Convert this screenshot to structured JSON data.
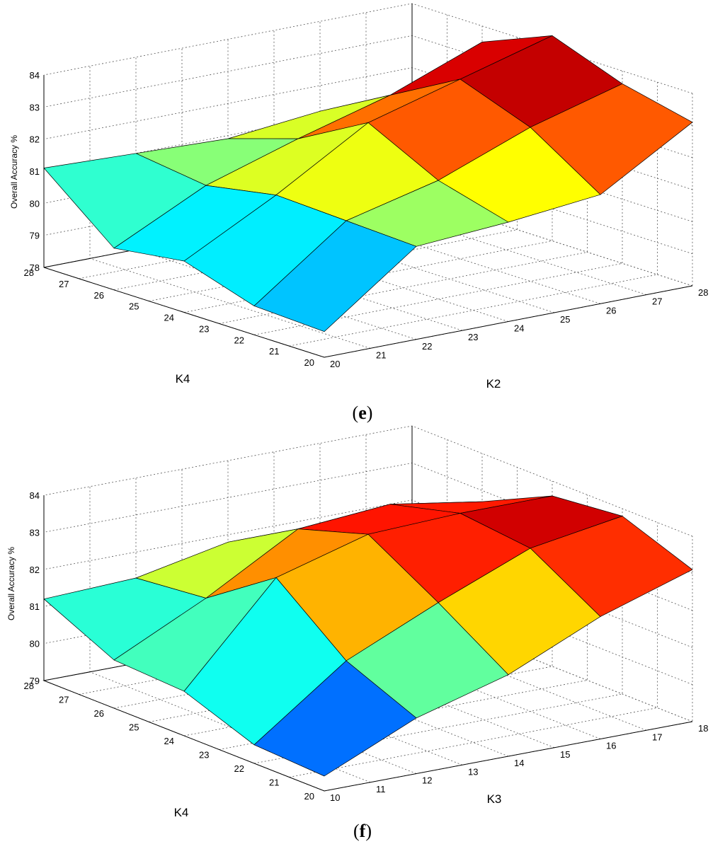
{
  "chart_data": [
    {
      "type": "surface",
      "caption": "(e)",
      "zlabel": "Overall Accuracy %",
      "xlabel": "K4",
      "ylabel": "K2",
      "x_ticks": [
        "20",
        "21",
        "22",
        "23",
        "24",
        "25",
        "26",
        "27",
        "28"
      ],
      "y_ticks": [
        "20",
        "21",
        "22",
        "23",
        "24",
        "25",
        "26",
        "27",
        "28"
      ],
      "z_ticks": [
        "78",
        "79",
        "80",
        "81",
        "82",
        "83",
        "84"
      ],
      "xlim": [
        20,
        28
      ],
      "ylim": [
        20,
        28
      ],
      "zlim": [
        78,
        84
      ],
      "grid": true,
      "colormap": "jet",
      "x": [
        20,
        22,
        24,
        26,
        28
      ],
      "y": [
        20,
        22,
        24,
        26,
        28
      ],
      "z": [
        [
          78.8,
          80.9,
          81.1,
          81.4,
          83.1
        ],
        [
          78.9,
          81.0,
          81.7,
          82.8,
          83.6
        ],
        [
          79.6,
          81.1,
          82.8,
          83.6,
          84.4
        ],
        [
          79.3,
          80.7,
          81.6,
          82.4,
          83.5
        ],
        [
          81.1,
          81.0,
          80.9,
          81.2,
          80.1
        ]
      ]
    },
    {
      "type": "surface",
      "caption": "(f)",
      "zlabel": "Overall Accuracy %",
      "xlabel": "K4",
      "ylabel": "K3",
      "x_ticks": [
        "20",
        "21",
        "22",
        "23",
        "24",
        "25",
        "26",
        "27",
        "28"
      ],
      "y_ticks": [
        "10",
        "11",
        "12",
        "13",
        "14",
        "15",
        "16",
        "17",
        "18"
      ],
      "z_ticks": [
        "79",
        "80",
        "81",
        "82",
        "83",
        "84"
      ],
      "xlim": [
        20,
        28
      ],
      "ylim": [
        10,
        18
      ],
      "zlim": [
        79,
        84
      ],
      "grid": true,
      "colormap": "jet",
      "x": [
        20,
        22,
        24,
        26,
        28
      ],
      "y": [
        10,
        12,
        14,
        16,
        18
      ],
      "z": [
        [
          79.4,
          80.5,
          81.2,
          82.3,
          83.1
        ],
        [
          79.5,
          81.3,
          82.4,
          83.4,
          83.8
        ],
        [
          80.2,
          82.8,
          83.5,
          83.6,
          83.6
        ],
        [
          80.3,
          81.5,
          82.9,
          83.1,
          82.7
        ],
        [
          81.2,
          81.3,
          81.8,
          81.5,
          80.8
        ]
      ]
    }
  ]
}
